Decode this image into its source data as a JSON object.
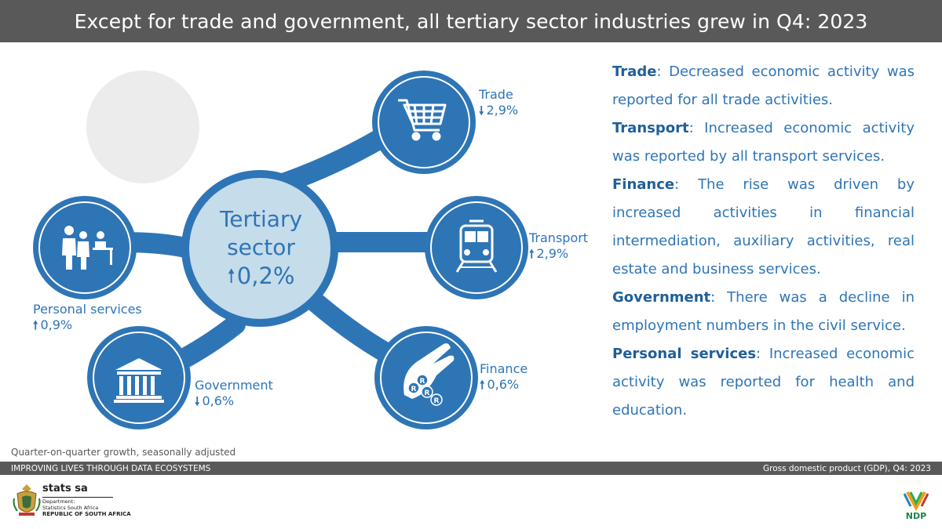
{
  "header": {
    "title": "Except for trade and government, all tertiary sector industries grew in Q4: 2023"
  },
  "center": {
    "title_line1": "Tertiary",
    "title_line2": "sector",
    "arrow": "🠕",
    "value": "0,2%",
    "direction": "up"
  },
  "segments": [
    {
      "key": "trade",
      "name": "Trade",
      "value": "2,9%",
      "direction": "down",
      "arrow": "🠗",
      "icon": "shopping-cart-icon"
    },
    {
      "key": "transport",
      "name": "Transport",
      "value": "2,9%",
      "direction": "up",
      "arrow": "🠕",
      "icon": "train-icon"
    },
    {
      "key": "finance",
      "name": "Finance",
      "value": "0,6%",
      "direction": "up",
      "arrow": "🠕",
      "icon": "hand-coins-icon"
    },
    {
      "key": "government",
      "name": "Government",
      "value": "0,6%",
      "direction": "down",
      "arrow": "🠗",
      "icon": "government-building-icon"
    },
    {
      "key": "personal",
      "name": "Personal services",
      "value": "0,9%",
      "direction": "up",
      "arrow": "🠕",
      "icon": "people-service-icon"
    }
  ],
  "descriptions": [
    {
      "term": "Trade",
      "text": ": Decreased economic activity was reported for all trade activities."
    },
    {
      "term": "Transport",
      "text": ": Increased economic activity was reported by all transport services."
    },
    {
      "term": "Finance",
      "text": ": The rise was driven by increased activities in financial intermediation, auxiliary activities, real estate and business services."
    },
    {
      "term": "Government",
      "text": ": There was a decline in employment numbers in the civil service."
    },
    {
      "term": "Personal services",
      "text": ": Increased economic activity was reported for health and education."
    }
  ],
  "footnote": "Quarter-on-quarter growth, seasonally adjusted",
  "bottom_bar": {
    "left": "IMPROVING LIVES THROUGH DATA ECOSYSTEMS",
    "right": "Gross domestic product (GDP), Q4: 2023"
  },
  "logo": {
    "name": "stats sa",
    "dept_line1": "Department:",
    "dept_line2": "Statistics South Africa",
    "country": "REPUBLIC OF SOUTH AFRICA",
    "ndp_text": "NDP"
  },
  "colors": {
    "primary_blue": "#2e75b6",
    "center_fill": "#c5dceb",
    "bar_gray": "#595959",
    "bubble_gray": "#ececec"
  }
}
